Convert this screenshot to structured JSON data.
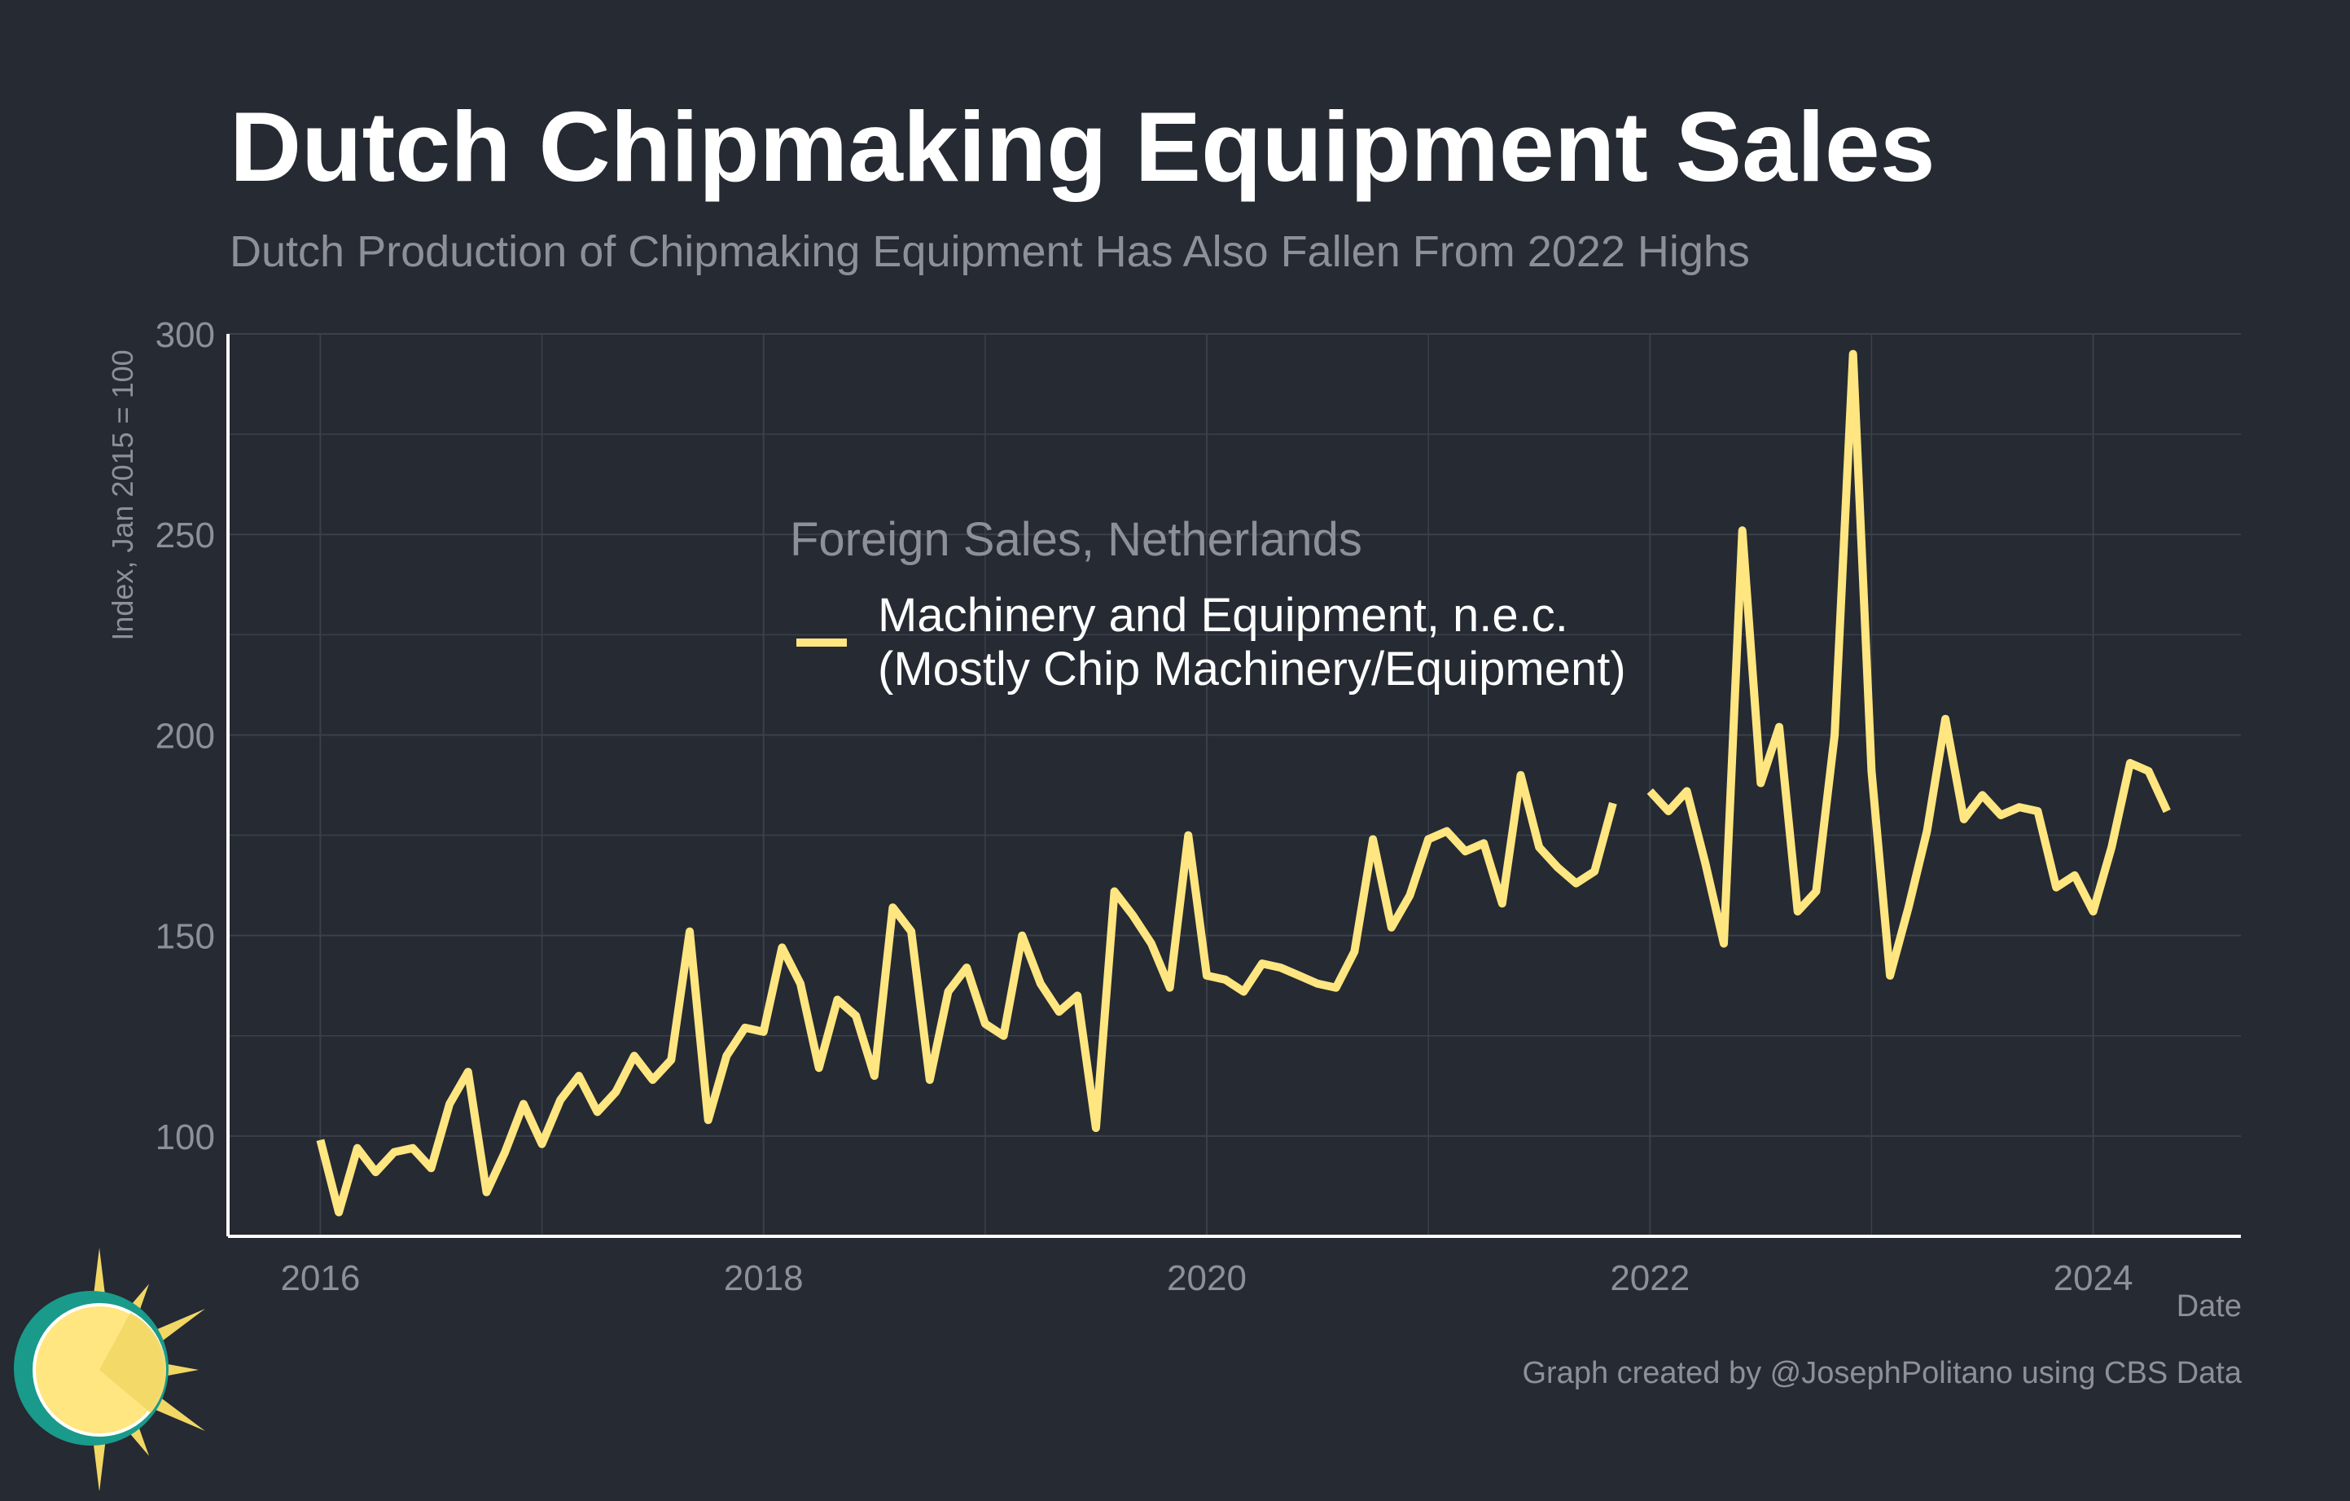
{
  "title": "Dutch Chipmaking Equipment Sales",
  "subtitle": "Dutch Production of Chipmaking Equipment Has Also Fallen From 2022 Highs",
  "credit": "Graph created by @JosephPolitano using CBS Data",
  "colors": {
    "background": "#252a33",
    "line": "#ffe680",
    "grid": "#3b404a",
    "text_muted": "#8e9097",
    "axis": "#ffffff"
  },
  "chart_data": {
    "type": "line",
    "xlabel": "Date",
    "ylabel": "Index, Jan 2015 = 100",
    "ylim": [
      75,
      300
    ],
    "xlim": [
      "2015-08",
      "2024-09"
    ],
    "y_ticks": [
      100,
      150,
      200,
      250,
      300
    ],
    "x_ticks": [
      "2016",
      "2018",
      "2020",
      "2022",
      "2024"
    ],
    "grid": true,
    "legend": {
      "title": "Foreign Sales, Netherlands",
      "position": "top-center"
    },
    "series": [
      {
        "name": "Machinery and Equipment, n.e.c.\n(Mostly Chip Machinery/Equipment)",
        "x": [
          "2016-01",
          "2016-02",
          "2016-03",
          "2016-04",
          "2016-05",
          "2016-06",
          "2016-07",
          "2016-08",
          "2016-09",
          "2016-10",
          "2016-11",
          "2016-12",
          "2017-01",
          "2017-02",
          "2017-03",
          "2017-04",
          "2017-05",
          "2017-06",
          "2017-07",
          "2017-08",
          "2017-09",
          "2017-10",
          "2017-11",
          "2017-12",
          "2018-01",
          "2018-02",
          "2018-03",
          "2018-04",
          "2018-05",
          "2018-06",
          "2018-07",
          "2018-08",
          "2018-09",
          "2018-10",
          "2018-11",
          "2018-12",
          "2019-01",
          "2019-02",
          "2019-03",
          "2019-04",
          "2019-05",
          "2019-06",
          "2019-07",
          "2019-08",
          "2019-09",
          "2019-10",
          "2019-11",
          "2019-12",
          "2020-01",
          "2020-02",
          "2020-03",
          "2020-04",
          "2020-05",
          "2020-06",
          "2020-07",
          "2020-08",
          "2020-09",
          "2020-10",
          "2020-11",
          "2020-12",
          "2021-01",
          "2021-02",
          "2021-03",
          "2021-04",
          "2021-05",
          "2021-06",
          "2021-07",
          "2021-08",
          "2021-09",
          "2021-10",
          "2021-11",
          "2021-12",
          "2022-01",
          "2022-02",
          "2022-03",
          "2022-04",
          "2022-05",
          "2022-06",
          "2022-07",
          "2022-08",
          "2022-09",
          "2022-10",
          "2022-11",
          "2022-12",
          "2023-01",
          "2023-02",
          "2023-03",
          "2023-04",
          "2023-05",
          "2023-06",
          "2023-07",
          "2023-08",
          "2023-09",
          "2023-10",
          "2023-11",
          "2023-12",
          "2024-01",
          "2024-02",
          "2024-03",
          "2024-04",
          "2024-05"
        ],
        "y": [
          99,
          81,
          97,
          91,
          96,
          97,
          92,
          108,
          116,
          86,
          96,
          108,
          98,
          109,
          115,
          106,
          111,
          120,
          114,
          119,
          151,
          104,
          120,
          127,
          126,
          147,
          138,
          117,
          134,
          130,
          115,
          157,
          151,
          114,
          136,
          142,
          128,
          125,
          150,
          138,
          131,
          135,
          102,
          161,
          155,
          148,
          137,
          175,
          140,
          139,
          136,
          143,
          142,
          140,
          138,
          137,
          146,
          174,
          152,
          160,
          174,
          176,
          171,
          173,
          158,
          190,
          172,
          167,
          163,
          166,
          183,
          null,
          186,
          181,
          186,
          168,
          148,
          251,
          188,
          202,
          156,
          161,
          200,
          295,
          191,
          140,
          157,
          176,
          204,
          179,
          185,
          180,
          182,
          181,
          162,
          165,
          156,
          172,
          193,
          191,
          181
        ]
      }
    ]
  }
}
